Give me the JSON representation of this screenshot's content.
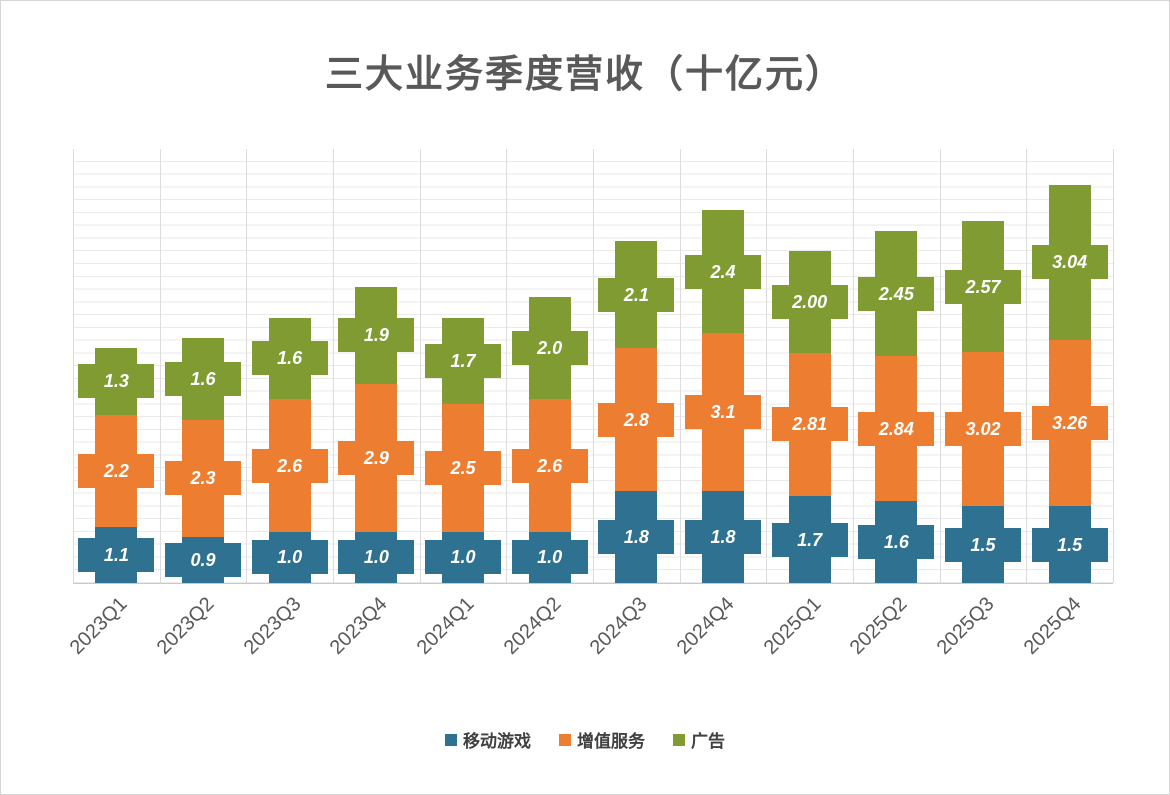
{
  "title": "三大业务季度营收（十亿元）",
  "chart_data": {
    "type": "bar",
    "stacked": true,
    "title": "三大业务季度营收（十亿元）",
    "xlabel": "",
    "ylabel": "",
    "ylim": [
      0,
      8.5
    ],
    "grid": true,
    "legend_position": "bottom",
    "categories": [
      "2023Q1",
      "2023Q2",
      "2023Q3",
      "2023Q4",
      "2024Q1",
      "2024Q2",
      "2024Q3",
      "2024Q4",
      "2025Q1",
      "2025Q2",
      "2025Q3",
      "2025Q4"
    ],
    "series": [
      {
        "name": "移动游戏",
        "color": "#2F7191",
        "values": [
          1.1,
          0.9,
          1.0,
          1.0,
          1.0,
          1.0,
          1.8,
          1.8,
          1.7,
          1.6,
          1.5,
          1.5
        ],
        "labels": [
          "1.1",
          "0.9",
          "1.0",
          "1.0",
          "1.0",
          "1.0",
          "1.8",
          "1.8",
          "1.7",
          "1.6",
          "1.5",
          "1.5"
        ]
      },
      {
        "name": "增值服务",
        "color": "#ED7D31",
        "values": [
          2.2,
          2.3,
          2.6,
          2.9,
          2.5,
          2.6,
          2.8,
          3.1,
          2.81,
          2.84,
          3.02,
          3.26
        ],
        "labels": [
          "2.2",
          "2.3",
          "2.6",
          "2.9",
          "2.5",
          "2.6",
          "2.8",
          "3.1",
          "2.81",
          "2.84",
          "3.02",
          "3.26"
        ]
      },
      {
        "name": "广告",
        "color": "#7F9B32",
        "values": [
          1.3,
          1.6,
          1.6,
          1.9,
          1.7,
          2.0,
          2.1,
          2.4,
          2.0,
          2.45,
          2.57,
          3.04
        ],
        "labels": [
          "1.3",
          "1.6",
          "1.6",
          "1.9",
          "1.7",
          "2.0",
          "2.1",
          "2.4",
          "2.00",
          "2.45",
          "2.57",
          "3.04"
        ]
      }
    ]
  }
}
